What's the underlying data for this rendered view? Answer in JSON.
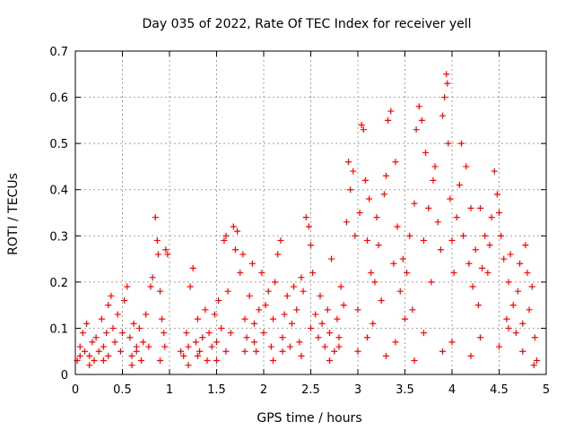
{
  "chart_data": {
    "type": "scatter",
    "title": "Day 035 of 2022, Rate Of TEC Index for receiver yell",
    "xlabel": "GPS time / hours",
    "ylabel": "ROTI / TECUs",
    "xlim": [
      0,
      5
    ],
    "ylim": [
      0,
      0.7
    ],
    "grid": true,
    "marker": "+",
    "color": "#ff0000",
    "x_ticks": [
      {
        "value": 0,
        "label": "0"
      },
      {
        "value": 0.5,
        "label": "0.5"
      },
      {
        "value": 1,
        "label": "1"
      },
      {
        "value": 1.5,
        "label": "1.5"
      },
      {
        "value": 2,
        "label": "2"
      },
      {
        "value": 2.5,
        "label": "2.5"
      },
      {
        "value": 3,
        "label": "3"
      },
      {
        "value": 3.5,
        "label": "3.5"
      },
      {
        "value": 4,
        "label": "4"
      },
      {
        "value": 4.5,
        "label": "4.5"
      },
      {
        "value": 5,
        "label": "5"
      }
    ],
    "y_ticks": [
      {
        "value": 0,
        "label": "0"
      },
      {
        "value": 0.1,
        "label": "0.1"
      },
      {
        "value": 0.2,
        "label": "0.2"
      },
      {
        "value": 0.3,
        "label": "0.3"
      },
      {
        "value": 0.4,
        "label": "0.4"
      },
      {
        "value": 0.5,
        "label": "0.5"
      },
      {
        "value": 0.6,
        "label": "0.6"
      },
      {
        "value": 0.7,
        "label": "0.7"
      }
    ],
    "series": [
      {
        "name": "ROTI",
        "points": [
          [
            0.02,
            0.03
          ],
          [
            0.05,
            0.06
          ],
          [
            0.08,
            0.09
          ],
          [
            0.1,
            0.05
          ],
          [
            0.12,
            0.11
          ],
          [
            0.15,
            0.04
          ],
          [
            0.18,
            0.07
          ],
          [
            0.2,
            0.03
          ],
          [
            0.22,
            0.08
          ],
          [
            0.25,
            0.05
          ],
          [
            0.28,
            0.12
          ],
          [
            0.3,
            0.06
          ],
          [
            0.33,
            0.09
          ],
          [
            0.35,
            0.15
          ],
          [
            0.38,
            0.17
          ],
          [
            0.4,
            0.1
          ],
          [
            0.42,
            0.07
          ],
          [
            0.45,
            0.13
          ],
          [
            0.48,
            0.05
          ],
          [
            0.5,
            0.09
          ],
          [
            0.52,
            0.16
          ],
          [
            0.55,
            0.19
          ],
          [
            0.58,
            0.08
          ],
          [
            0.6,
            0.04
          ],
          [
            0.62,
            0.11
          ],
          [
            0.65,
            0.06
          ],
          [
            0.68,
            0.1
          ],
          [
            0.7,
            0.03
          ],
          [
            0.72,
            0.07
          ],
          [
            0.75,
            0.13
          ],
          [
            0.78,
            0.06
          ],
          [
            0.8,
            0.19
          ],
          [
            0.82,
            0.21
          ],
          [
            0.85,
            0.34
          ],
          [
            0.87,
            0.29
          ],
          [
            0.88,
            0.26
          ],
          [
            0.9,
            0.18
          ],
          [
            0.92,
            0.12
          ],
          [
            0.94,
            0.09
          ],
          [
            0.96,
            0.27
          ],
          [
            0.98,
            0.26
          ],
          [
            1.12,
            0.05
          ],
          [
            1.15,
            0.04
          ],
          [
            1.18,
            0.09
          ],
          [
            1.2,
            0.06
          ],
          [
            1.22,
            0.19
          ],
          [
            1.25,
            0.23
          ],
          [
            1.28,
            0.07
          ],
          [
            1.3,
            0.12
          ],
          [
            1.32,
            0.05
          ],
          [
            1.35,
            0.08
          ],
          [
            1.38,
            0.14
          ],
          [
            1.4,
            0.03
          ],
          [
            1.42,
            0.09
          ],
          [
            1.45,
            0.06
          ],
          [
            1.48,
            0.13
          ],
          [
            1.5,
            0.07
          ],
          [
            1.52,
            0.16
          ],
          [
            1.55,
            0.1
          ],
          [
            1.58,
            0.29
          ],
          [
            1.6,
            0.3
          ],
          [
            1.62,
            0.18
          ],
          [
            1.65,
            0.09
          ],
          [
            1.68,
            0.32
          ],
          [
            1.7,
            0.27
          ],
          [
            1.72,
            0.31
          ],
          [
            1.75,
            0.22
          ],
          [
            1.78,
            0.26
          ],
          [
            1.8,
            0.12
          ],
          [
            1.82,
            0.08
          ],
          [
            1.85,
            0.17
          ],
          [
            1.88,
            0.24
          ],
          [
            1.9,
            0.11
          ],
          [
            1.92,
            0.05
          ],
          [
            1.95,
            0.14
          ],
          [
            1.98,
            0.22
          ],
          [
            2.0,
            0.09
          ],
          [
            2.02,
            0.15
          ],
          [
            2.05,
            0.18
          ],
          [
            2.08,
            0.06
          ],
          [
            2.1,
            0.12
          ],
          [
            2.12,
            0.2
          ],
          [
            2.15,
            0.26
          ],
          [
            2.18,
            0.29
          ],
          [
            2.2,
            0.08
          ],
          [
            2.22,
            0.13
          ],
          [
            2.25,
            0.17
          ],
          [
            2.28,
            0.06
          ],
          [
            2.3,
            0.11
          ],
          [
            2.32,
            0.19
          ],
          [
            2.35,
            0.14
          ],
          [
            2.38,
            0.07
          ],
          [
            2.4,
            0.21
          ],
          [
            2.42,
            0.18
          ],
          [
            2.45,
            0.34
          ],
          [
            2.48,
            0.32
          ],
          [
            2.5,
            0.28
          ],
          [
            2.52,
            0.22
          ],
          [
            2.55,
            0.13
          ],
          [
            2.58,
            0.08
          ],
          [
            2.6,
            0.17
          ],
          [
            2.62,
            0.11
          ],
          [
            2.65,
            0.06
          ],
          [
            2.68,
            0.14
          ],
          [
            2.7,
            0.09
          ],
          [
            2.72,
            0.25
          ],
          [
            2.75,
            0.05
          ],
          [
            2.78,
            0.12
          ],
          [
            2.8,
            0.08
          ],
          [
            2.82,
            0.19
          ],
          [
            2.85,
            0.15
          ],
          [
            2.88,
            0.33
          ],
          [
            2.9,
            0.46
          ],
          [
            2.92,
            0.4
          ],
          [
            2.95,
            0.44
          ],
          [
            2.97,
            0.3
          ],
          [
            3.0,
            0.14
          ],
          [
            3.02,
            0.35
          ],
          [
            3.04,
            0.54
          ],
          [
            3.06,
            0.53
          ],
          [
            3.08,
            0.42
          ],
          [
            3.1,
            0.29
          ],
          [
            3.12,
            0.38
          ],
          [
            3.14,
            0.22
          ],
          [
            3.16,
            0.11
          ],
          [
            3.18,
            0.2
          ],
          [
            3.2,
            0.34
          ],
          [
            3.22,
            0.28
          ],
          [
            3.25,
            0.16
          ],
          [
            3.28,
            0.39
          ],
          [
            3.3,
            0.43
          ],
          [
            3.32,
            0.55
          ],
          [
            3.35,
            0.57
          ],
          [
            3.38,
            0.24
          ],
          [
            3.4,
            0.46
          ],
          [
            3.42,
            0.32
          ],
          [
            3.45,
            0.18
          ],
          [
            3.48,
            0.25
          ],
          [
            3.5,
            0.12
          ],
          [
            3.52,
            0.22
          ],
          [
            3.55,
            0.3
          ],
          [
            3.58,
            0.14
          ],
          [
            3.6,
            0.37
          ],
          [
            3.62,
            0.53
          ],
          [
            3.65,
            0.58
          ],
          [
            3.68,
            0.55
          ],
          [
            3.7,
            0.29
          ],
          [
            3.72,
            0.48
          ],
          [
            3.75,
            0.36
          ],
          [
            3.78,
            0.2
          ],
          [
            3.8,
            0.42
          ],
          [
            3.82,
            0.45
          ],
          [
            3.85,
            0.33
          ],
          [
            3.88,
            0.27
          ],
          [
            3.9,
            0.56
          ],
          [
            3.92,
            0.6
          ],
          [
            3.94,
            0.65
          ],
          [
            3.95,
            0.63
          ],
          [
            3.96,
            0.5
          ],
          [
            3.98,
            0.38
          ],
          [
            4.0,
            0.29
          ],
          [
            4.02,
            0.22
          ],
          [
            4.05,
            0.34
          ],
          [
            4.08,
            0.41
          ],
          [
            4.1,
            0.5
          ],
          [
            4.12,
            0.3
          ],
          [
            4.15,
            0.45
          ],
          [
            4.18,
            0.24
          ],
          [
            4.2,
            0.36
          ],
          [
            4.22,
            0.19
          ],
          [
            4.25,
            0.27
          ],
          [
            4.28,
            0.15
          ],
          [
            4.3,
            0.36
          ],
          [
            4.32,
            0.23
          ],
          [
            4.35,
            0.3
          ],
          [
            4.38,
            0.22
          ],
          [
            4.4,
            0.28
          ],
          [
            4.42,
            0.34
          ],
          [
            4.45,
            0.44
          ],
          [
            4.48,
            0.39
          ],
          [
            4.5,
            0.35
          ],
          [
            4.52,
            0.3
          ],
          [
            4.55,
            0.25
          ],
          [
            4.58,
            0.12
          ],
          [
            4.6,
            0.2
          ],
          [
            4.62,
            0.26
          ],
          [
            4.65,
            0.15
          ],
          [
            4.68,
            0.09
          ],
          [
            4.7,
            0.18
          ],
          [
            4.72,
            0.24
          ],
          [
            4.75,
            0.11
          ],
          [
            4.78,
            0.28
          ],
          [
            4.8,
            0.22
          ],
          [
            4.82,
            0.14
          ],
          [
            4.85,
            0.19
          ],
          [
            4.88,
            0.08
          ],
          [
            4.9,
            0.03
          ],
          [
            4.87,
            0.02
          ],
          [
            4.5,
            0.06
          ],
          [
            4.2,
            0.04
          ],
          [
            3.9,
            0.05
          ],
          [
            3.6,
            0.03
          ],
          [
            3.3,
            0.04
          ],
          [
            3.0,
            0.05
          ],
          [
            2.7,
            0.03
          ],
          [
            2.4,
            0.04
          ],
          [
            2.1,
            0.03
          ],
          [
            1.8,
            0.05
          ],
          [
            1.5,
            0.03
          ],
          [
            1.2,
            0.02
          ],
          [
            0.9,
            0.03
          ],
          [
            0.6,
            0.02
          ],
          [
            0.3,
            0.03
          ],
          [
            0.15,
            0.02
          ],
          [
            4.3,
            0.08
          ],
          [
            4.6,
            0.1
          ],
          [
            4.75,
            0.05
          ],
          [
            4.0,
            0.07
          ],
          [
            3.7,
            0.09
          ],
          [
            3.4,
            0.07
          ],
          [
            3.1,
            0.08
          ],
          [
            2.8,
            0.06
          ],
          [
            2.5,
            0.1
          ],
          [
            2.2,
            0.05
          ],
          [
            1.9,
            0.07
          ],
          [
            1.6,
            0.05
          ],
          [
            1.3,
            0.04
          ],
          [
            0.95,
            0.06
          ],
          [
            0.65,
            0.05
          ],
          [
            0.35,
            0.04
          ],
          [
            0.05,
            0.04
          ]
        ]
      }
    ]
  }
}
